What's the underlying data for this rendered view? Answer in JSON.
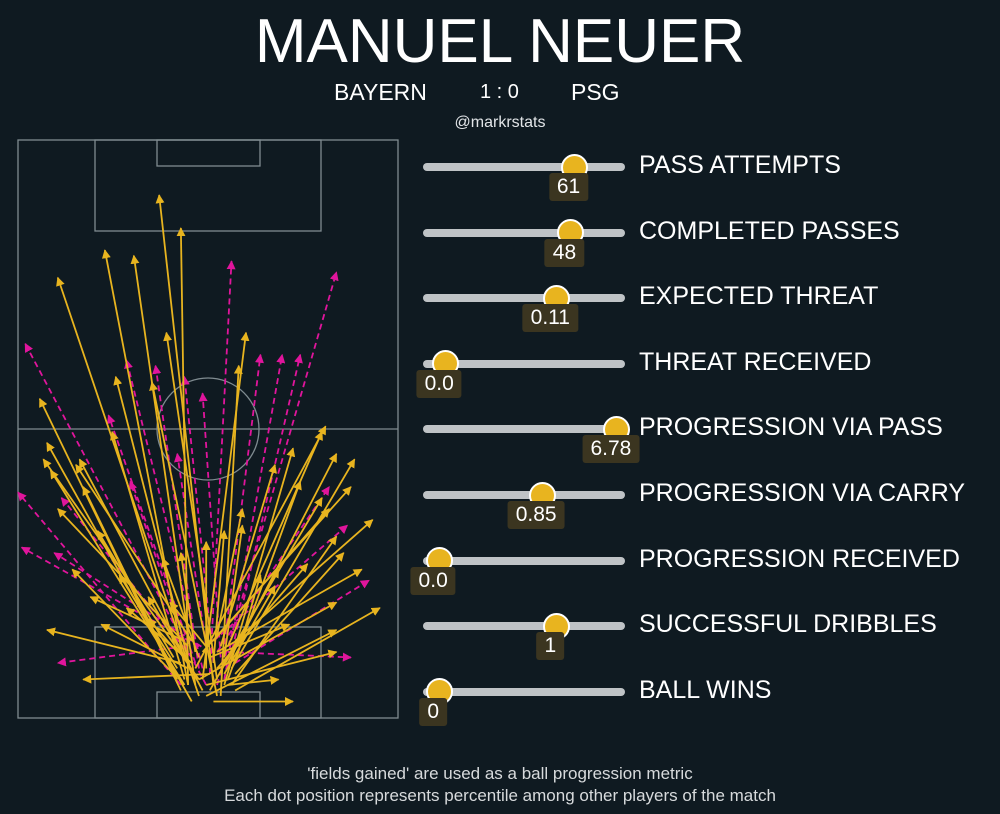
{
  "header": {
    "title": "MANUEL NEUER",
    "home": "BAYERN",
    "score": "1 : 0",
    "away": "PSG",
    "handle": "@markrstats"
  },
  "colors": {
    "background": "#0f1a21",
    "pass_arrow": "#e8b41f",
    "carry_arrow": "#e0159c",
    "pitch_line": "#7f8b90",
    "track": "#bfc3c6",
    "dot": "#e8b41f"
  },
  "chart_data": [
    {
      "type": "percentile-dots",
      "title": "",
      "metrics": [
        {
          "label": "PASS ATTEMPTS",
          "value": "61",
          "percentile": 0.75
        },
        {
          "label": "COMPLETED PASSES",
          "value": "48",
          "percentile": 0.73
        },
        {
          "label": "EXPECTED THREAT",
          "value": "0.11",
          "percentile": 0.66
        },
        {
          "label": "THREAT RECEIVED",
          "value": "0.0",
          "percentile": 0.11
        },
        {
          "label": "PROGRESSION VIA PASS",
          "value": "6.78",
          "percentile": 0.96
        },
        {
          "label": "PROGRESSION VIA CARRY",
          "value": "0.85",
          "percentile": 0.59
        },
        {
          "label": "PROGRESSION RECEIVED",
          "value": "0.0",
          "percentile": 0.08
        },
        {
          "label": "SUCCESSFUL DRIBBLES",
          "value": "1",
          "percentile": 0.66
        },
        {
          "label": "BALL WINS",
          "value": "0",
          "percentile": 0.08
        }
      ]
    },
    {
      "type": "pass-map",
      "pitch_units": {
        "length": 105,
        "width": 68
      },
      "passes": [
        [
          50,
          4,
          11,
          80
        ],
        [
          48,
          3,
          8,
          50
        ],
        [
          54,
          3,
          76,
          3
        ],
        [
          55,
          4,
          37,
          61
        ],
        [
          52,
          4,
          88,
          16
        ],
        [
          60,
          5,
          100,
          20
        ],
        [
          45,
          5,
          6,
          58
        ],
        [
          47,
          6,
          45,
          89
        ],
        [
          56,
          4,
          61,
          64
        ],
        [
          58,
          6,
          72,
          7
        ],
        [
          49,
          6,
          32,
          84
        ],
        [
          53,
          5,
          72,
          27
        ],
        [
          51,
          5,
          17,
          47
        ],
        [
          57,
          6,
          76,
          49
        ],
        [
          44,
          7,
          18,
          42
        ],
        [
          50,
          7,
          7,
          47
        ],
        [
          52,
          6,
          88,
          12
        ],
        [
          46,
          6,
          9,
          45
        ],
        [
          59,
          6,
          88,
          33
        ],
        [
          48,
          8,
          27,
          62
        ],
        [
          54,
          6,
          39,
          95
        ],
        [
          55,
          7,
          41,
          70
        ],
        [
          46,
          7,
          26,
          52
        ],
        [
          58,
          7,
          78,
          43
        ],
        [
          47,
          6,
          24,
          85
        ],
        [
          53,
          8,
          18,
          7
        ],
        [
          60,
          8,
          90,
          30
        ],
        [
          50,
          7,
          88,
          21
        ],
        [
          51,
          7,
          63,
          70
        ],
        [
          43,
          8,
          15,
          27
        ],
        [
          56,
          9,
          84,
          40
        ],
        [
          44,
          9,
          28,
          26
        ],
        [
          49,
          9,
          85,
          53
        ],
        [
          57,
          8,
          71,
          24
        ],
        [
          47,
          9,
          23,
          17
        ],
        [
          55,
          9,
          80,
          28
        ],
        [
          52,
          9,
          52,
          32
        ],
        [
          45,
          10,
          8,
          16
        ],
        [
          59,
          9,
          93,
          47
        ],
        [
          48,
          10,
          30,
          20
        ],
        [
          54,
          10,
          57,
          34
        ],
        [
          58,
          10,
          88,
          48
        ],
        [
          46,
          11,
          36,
          22
        ],
        [
          60,
          10,
          67,
          26
        ],
        [
          50,
          11,
          40,
          29
        ],
        [
          53,
          11,
          75,
          17
        ],
        [
          43,
          11,
          22,
          34
        ],
        [
          57,
          11,
          62,
          35
        ],
        [
          49,
          12,
          45,
          30
        ],
        [
          55,
          12,
          95,
          27
        ],
        [
          51,
          12,
          92,
          42
        ],
        [
          56,
          13,
          71,
          46
        ],
        [
          44,
          12,
          36,
          18
        ],
        [
          58,
          13,
          84,
          52
        ],
        [
          47,
          13,
          11,
          38
        ],
        [
          52,
          13,
          42,
          21
        ],
        [
          54,
          14,
          86,
          38
        ],
        [
          46,
          14,
          20,
          22
        ],
        [
          60,
          14,
          98,
          36
        ],
        [
          48,
          14,
          16,
          46
        ],
        [
          55,
          15,
          62,
          38
        ]
      ],
      "carries": [
        [
          52,
          6,
          2,
          68
        ],
        [
          55,
          6,
          88,
          81
        ],
        [
          53,
          8,
          59,
          83
        ],
        [
          56,
          8,
          67,
          66
        ],
        [
          50,
          9,
          38,
          64
        ],
        [
          57,
          7,
          73,
          66
        ],
        [
          54,
          10,
          46,
          62
        ],
        [
          51,
          9,
          30,
          65
        ],
        [
          58,
          9,
          78,
          66
        ],
        [
          49,
          10,
          25,
          55
        ],
        [
          56,
          11,
          51,
          59
        ],
        [
          53,
          12,
          10,
          30
        ],
        [
          60,
          10,
          97,
          25
        ],
        [
          48,
          11,
          12,
          40
        ],
        [
          55,
          12,
          86,
          42
        ],
        [
          45,
          6,
          0,
          41
        ],
        [
          47,
          12,
          31,
          43
        ],
        [
          58,
          12,
          92,
          11
        ],
        [
          52,
          13,
          44,
          48
        ],
        [
          50,
          13,
          1,
          31
        ],
        [
          54,
          14,
          91,
          35
        ],
        [
          46,
          13,
          11,
          10
        ]
      ]
    }
  ],
  "footer": {
    "note1": "'fields gained' are used as a ball progression metric",
    "note2": "Each dot position represents percentile among other players of the match"
  }
}
